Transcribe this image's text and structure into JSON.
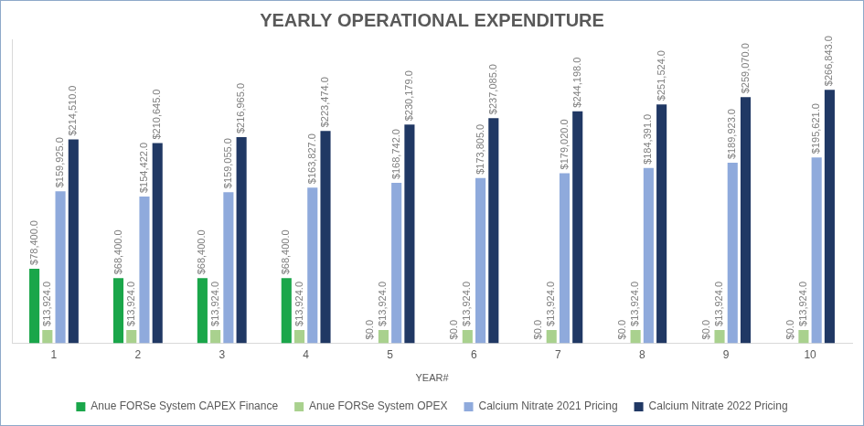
{
  "chart_data": {
    "type": "bar",
    "title": "YEARLY OPERATIONAL EXPENDITURE",
    "x_label": "YEAR#",
    "categories": [
      "1",
      "2",
      "3",
      "4",
      "5",
      "6",
      "7",
      "8",
      "9",
      "10"
    ],
    "series": [
      {
        "name": "Anue FORSe System CAPEX Finance",
        "color": "#1aa64a",
        "values": [
          78400,
          68400,
          68400,
          68400,
          0,
          0,
          0,
          0,
          0,
          0
        ],
        "value_labels": [
          "$78,400.0",
          "$68,400.0",
          "$68,400.0",
          "$68,400.0",
          "$0.0",
          "$0.0",
          "$0.0",
          "$0.0",
          "$0.0",
          "$0.0"
        ]
      },
      {
        "name": "Anue FORSe System OPEX",
        "color": "#a9d18e",
        "values": [
          13924,
          13924,
          13924,
          13924,
          13924,
          13924,
          13924,
          13924,
          13924,
          13924
        ],
        "value_labels": [
          "$13,924.0",
          "$13,924.0",
          "$13,924.0",
          "$13,924.0",
          "$13,924.0",
          "$13,924.0",
          "$13,924.0",
          "$13,924.0",
          "$13,924.0",
          "$13,924.0"
        ]
      },
      {
        "name": "Calcium Nitrate 2021 Pricing",
        "color": "#8faadc",
        "values": [
          159925,
          154422,
          159055,
          163827,
          168742,
          173805,
          179020,
          184391,
          189923,
          195621
        ],
        "value_labels": [
          "$159,925.0",
          "$154,422.0",
          "$159,055.0",
          "$163,827.0",
          "$168,742.0",
          "$173,805.0",
          "$179,020.0",
          "$184,391.0",
          "$189,923.0",
          "$195,621.0"
        ]
      },
      {
        "name": "Calcium Nitrate 2022 Pricing",
        "color": "#203864",
        "values": [
          214510,
          210645,
          216965,
          223474,
          230179,
          237085,
          244198,
          251524,
          259070,
          266843
        ],
        "value_labels": [
          "$214,510.0",
          "$210,645.0",
          "$216,965.0",
          "$223,474.0",
          "$230,179.0",
          "$237,085.0",
          "$244,198.0",
          "$251,524.0",
          "$259,070.0",
          "$266,843.0"
        ]
      }
    ],
    "ylim": [
      0,
      320000
    ],
    "grid": false,
    "legend": "bottom",
    "data_labels": true,
    "tick_labels": "x"
  }
}
